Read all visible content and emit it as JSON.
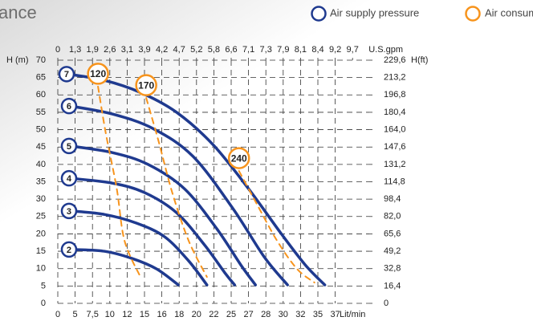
{
  "chart_data": {
    "type": "line",
    "title": "ance",
    "legend": [
      {
        "label": "Air supply pressure",
        "color": "#1f3a8f"
      },
      {
        "label": "Air consumption Nlt/min",
        "color": "#f7941d"
      }
    ],
    "xlabel": "Lit/min",
    "x2label": "U.S.gpm",
    "ylabel": "H (m)",
    "y2label": "H(ft)",
    "xticks": [
      0,
      5,
      {
        "value": 7.5,
        "label": "7,5"
      },
      10,
      12,
      15,
      16,
      18,
      20,
      22,
      25,
      27,
      28,
      30,
      32,
      35,
      37
    ],
    "x2ticks": [
      0,
      {
        "value": 1.3,
        "label": "1,3"
      },
      {
        "value": 1.9,
        "label": "1,9"
      },
      {
        "value": 2.6,
        "label": "2,6"
      },
      {
        "value": 3.1,
        "label": "3,1"
      },
      {
        "value": 3.9,
        "label": "3,9"
      },
      {
        "value": 4.2,
        "label": "4,2"
      },
      {
        "value": 4.7,
        "label": "4,7"
      },
      {
        "value": 5.2,
        "label": "5,2"
      },
      {
        "value": 5.8,
        "label": "5,8"
      },
      {
        "value": 6.6,
        "label": "6,6"
      },
      {
        "value": 7.1,
        "label": "7,1"
      },
      {
        "value": 7.3,
        "label": "7,3"
      },
      {
        "value": 7.9,
        "label": "7,9"
      },
      {
        "value": 8.1,
        "label": "8,1"
      },
      {
        "value": 8.4,
        "label": "8,4"
      },
      {
        "value": 9.2,
        "label": "9,2"
      },
      {
        "value": 9.7,
        "label": "9,7"
      }
    ],
    "ylim": [
      0,
      70
    ],
    "yticks": [
      0,
      5,
      10,
      15,
      20,
      25,
      30,
      35,
      40,
      45,
      50,
      55,
      60,
      65,
      70
    ],
    "y2lim": [
      0,
      229.6
    ],
    "y2ticks": [
      0,
      {
        "value": 16.4,
        "label": "16,4"
      },
      {
        "value": 32.8,
        "label": "32,8"
      },
      {
        "value": 49.2,
        "label": "49,2"
      },
      {
        "value": 65.6,
        "label": "65,6"
      },
      {
        "value": 82,
        "label": "82,0"
      },
      {
        "value": 98.4,
        "label": "98,4"
      },
      {
        "value": 114.8,
        "label": "114,8"
      },
      {
        "value": 131.2,
        "label": "131,2"
      },
      {
        "value": 147.6,
        "label": "147,6"
      },
      {
        "value": 164,
        "label": "164,0"
      },
      {
        "value": 180.4,
        "label": "180,4"
      },
      {
        "value": 196.8,
        "label": "196,8"
      },
      {
        "value": 213.2,
        "label": "213,2"
      },
      {
        "value": 229.6,
        "label": "229,6"
      }
    ],
    "grid": true,
    "series": [
      {
        "name": "2",
        "group": "pressure",
        "color": "#1f3a8f",
        "x": [
          3.7,
          9.2,
          12.9,
          15.7,
          17.9
        ],
        "values": [
          15.5,
          15,
          12.9,
          9.9,
          5.3
        ]
      },
      {
        "name": "3",
        "group": "pressure",
        "color": "#1f3a8f",
        "x": [
          3.7,
          9.2,
          13.6,
          16.3,
          19.1,
          21.2
        ],
        "values": [
          26.6,
          25.6,
          23.1,
          19.2,
          12.2,
          5.3
        ]
      },
      {
        "name": "4",
        "group": "pressure",
        "color": "#1f3a8f",
        "x": [
          3.7,
          10.3,
          15,
          17.7,
          20.9,
          23.9,
          25.4
        ],
        "values": [
          36,
          34.6,
          31.9,
          26.1,
          16.9,
          8.8,
          5.3
        ]
      },
      {
        "name": "5",
        "group": "pressure",
        "color": "#1f3a8f",
        "x": [
          3.7,
          10.3,
          15.2,
          18.6,
          22.5,
          26.1,
          27.4
        ],
        "values": [
          45.3,
          43.4,
          40,
          33,
          21.5,
          11.1,
          5.3
        ]
      },
      {
        "name": "6",
        "group": "pressure",
        "color": "#1f3a8f",
        "x": [
          3.7,
          10.3,
          15.5,
          19.6,
          25.2,
          27.9,
          30.5
        ],
        "values": [
          56.8,
          54.5,
          50.3,
          42.3,
          27.3,
          13.4,
          5.3
        ]
      },
      {
        "name": "7",
        "group": "pressure",
        "color": "#1f3a8f",
        "x": [
          3,
          9.2,
          14.3,
          17.7,
          21.9,
          27,
          29.7,
          32.8,
          35.8
        ],
        "values": [
          66,
          64.2,
          60.7,
          55,
          45.7,
          33,
          20.3,
          11.1,
          5.3
        ]
      },
      {
        "name": "120",
        "group": "consumption",
        "color": "#f7941d",
        "x": [
          8.3,
          9.4,
          10.8,
          11.7,
          14.3
        ],
        "values": [
          62.4,
          49.2,
          33,
          18,
          7.6
        ]
      },
      {
        "name": "170",
        "group": "consumption",
        "color": "#f7941d",
        "x": [
          15.1,
          15.8,
          17.2,
          19.1,
          21.2
        ],
        "values": [
          59.1,
          46.9,
          31.9,
          18,
          7.6
        ]
      },
      {
        "name": "240",
        "group": "consumption",
        "color": "#f7941d",
        "x": [
          25.9,
          27.5,
          29.3,
          31.6,
          34.4
        ],
        "values": [
          38.1,
          28.4,
          18,
          9.9,
          6
        ]
      }
    ]
  }
}
